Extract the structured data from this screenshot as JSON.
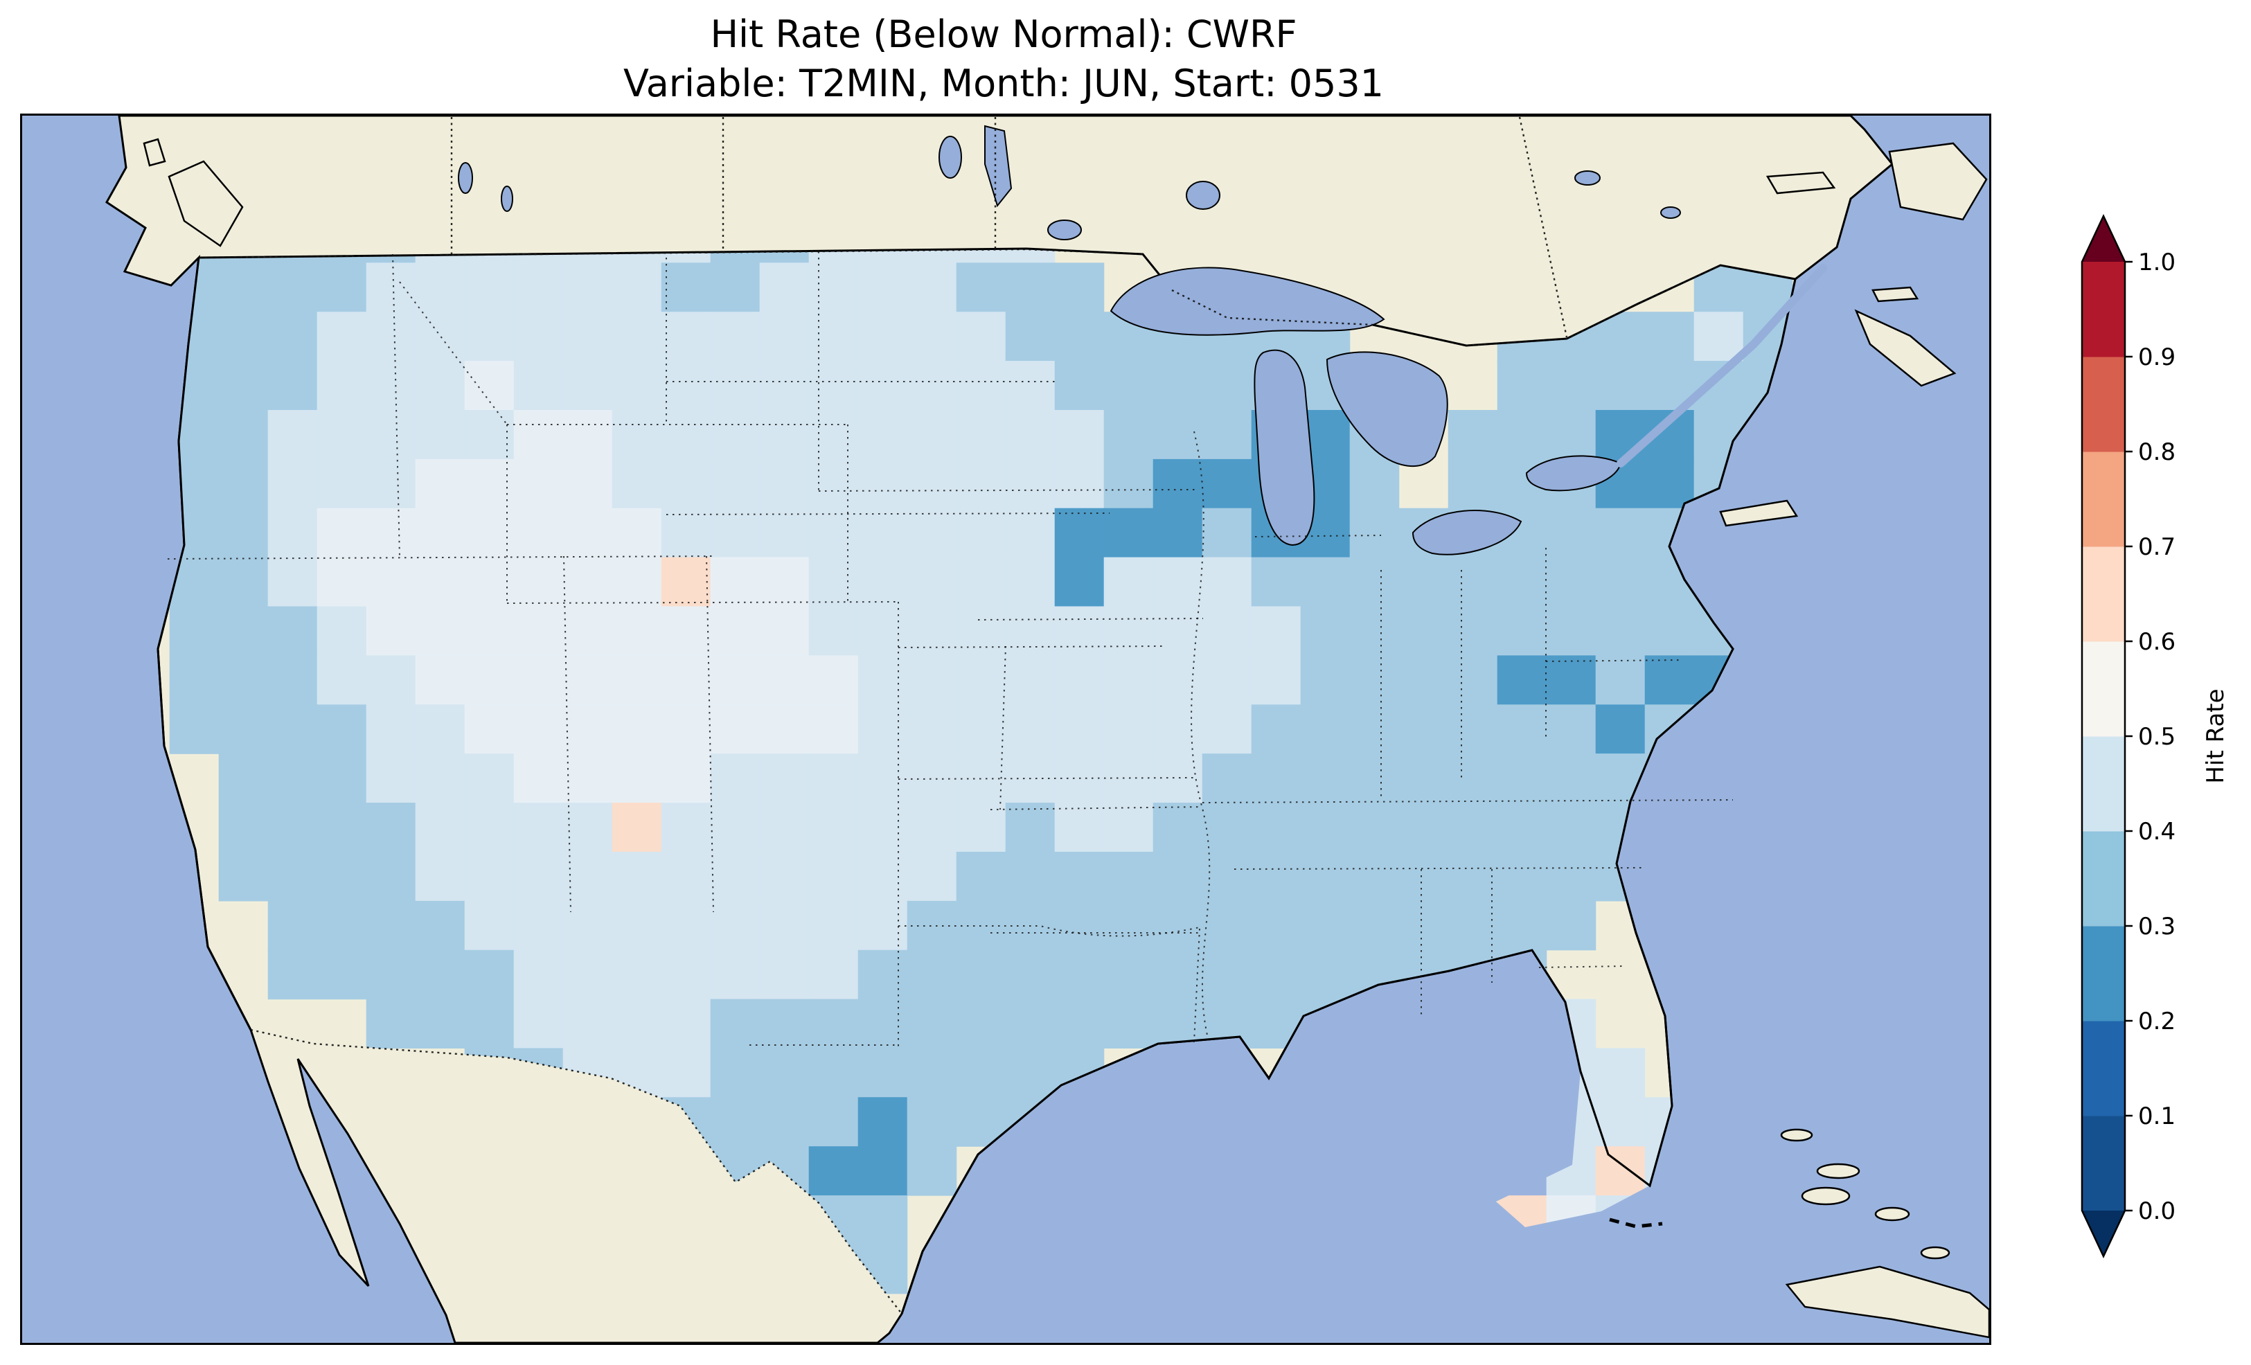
{
  "title": {
    "line1": "Hit Rate (Below Normal): CWRF",
    "line2": "Variable: T2MIN, Month: JUN, Start: 0531"
  },
  "figure": {
    "metric": "Hit Rate",
    "category": "Below Normal",
    "model": "CWRF",
    "variable": "T2MIN",
    "month": "JUN",
    "start": "0531"
  },
  "colors": {
    "background": "#ffffff",
    "ocean": "#9ab3de",
    "water": "#95aeda",
    "land": "#f0eedb",
    "coastline": "#000000"
  },
  "chart_data": {
    "type": "heatmap",
    "title": "Hit Rate (Below Normal): CWRF",
    "subtitle": "Variable: T2MIN, Month: JUN, Start: 0531",
    "region": "Contiguous United States, with Canada, Mexico, Great Lakes, Atlantic and Pacific oceans visible",
    "legend_position": "right",
    "colorbar": {
      "label": "Hit Rate",
      "orientation": "vertical-right",
      "extend": "both",
      "ticks": [
        1.0,
        0.9,
        0.8,
        0.7,
        0.6,
        0.5,
        0.4,
        0.3,
        0.2,
        0.1,
        0.0
      ],
      "bin_colors_low_to_high": [
        "#16518f",
        "#2166ac",
        "#4393c3",
        "#92c5de",
        "#d1e5f0",
        "#f7f5f0",
        "#fddbc7",
        "#f4a582",
        "#d6604d",
        "#b2182b"
      ],
      "under_arrow_color": "#053061",
      "over_arrow_color": "#67001f"
    },
    "grid": {
      "cols": 40,
      "rows": 25,
      "class_colors": {
        "2": "#4e9bc8",
        "3": "#a6cce3",
        "4": "#d5e6f1",
        "5": "#e7eff5",
        "6": "#fbddcb"
      },
      "class_value_ranges": {
        "2": "0.2-0.3",
        "3": "0.3-0.4",
        "4": "0.4-0.5",
        "5": "0.5-0.6",
        "6": "0.6-0.7"
      },
      "note": "Approximate gridded hit-rate field over CONUS: most cells 0.3-0.5; darker 0.2-0.3 patches over Wisconsin/Michigan, upstate New York, Iowa, Virginia and south Texas; isolated 0.6-0.7 (pale pink) cells in Utah/Arizona and south Florida; palest 0.5 cells over the Great Basin and central plains",
      "cell_classes": [
        "........................................",
        "........................................",
        "...333334444443344444...................",
        "...3333444444334444333............33....",
        "...333444444444444443333333...333343....",
        "...333444544444444444333333...333333....",
        "...3344444554444444444333223.3332233....",
        "...3344455554444444444322223.3332233....",
        "...334555555544444444222322333333333....",
        "...33455555556554444424443333333333.....",
        "...33345555555554444444444333333333.....",
        "...33344555555555444444444333322322.....",
        "...33334455555555444444443333333233.....",
        "....333444555544444444443333333333......",
        "....333344446444444434433333333333......",
        "....33334444444444433333333333333.......",
        ".....333344444444433333333333333........",
        ".....33333444444433333333333333.........",
        ".......3334444333333333333333334.........",
        ".........3344433333333.....333444.......",
        ".............33332333.........4444......",
        "..............33223............464......",
        "...............333...........5654.......",
        "................33......................",
        "........................................"
      ]
    }
  }
}
